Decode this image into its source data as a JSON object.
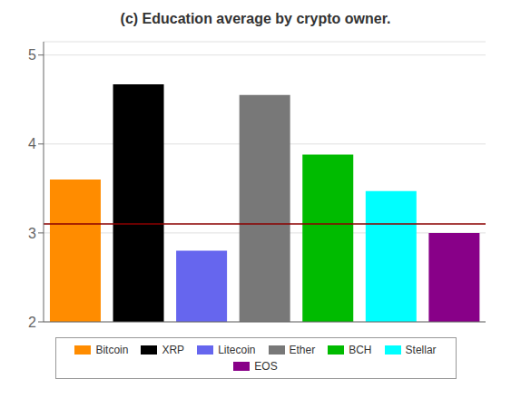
{
  "chart_data": {
    "type": "bar",
    "title": "(c) Education average by crypto owner.",
    "categories": [
      "Bitcoin",
      "XRP",
      "Litecoin",
      "Ether",
      "BCH",
      "Stellar",
      "EOS"
    ],
    "values": [
      3.6,
      4.67,
      2.8,
      4.55,
      3.88,
      3.47,
      3.0
    ],
    "colors": [
      "#FF8C00",
      "#000000",
      "#6666EE",
      "#787878",
      "#00BB00",
      "#00FFFF",
      "#880088"
    ],
    "ylim": [
      2,
      5.15
    ],
    "yticks": [
      2,
      3,
      4,
      5
    ],
    "grid": true,
    "legend": "bottom",
    "tick_labels": "y",
    "hlines": [
      {
        "value": 3.1,
        "color": "#8B0000"
      }
    ]
  }
}
